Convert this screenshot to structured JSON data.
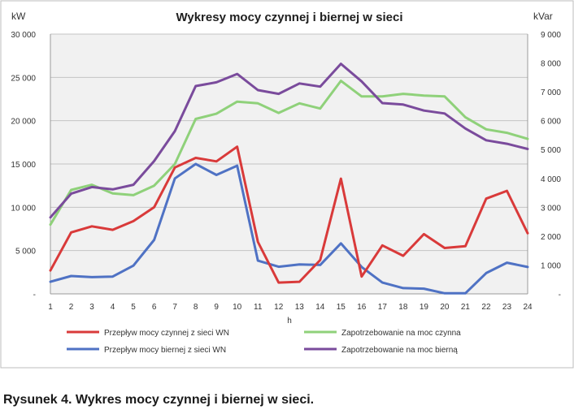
{
  "chart_data": {
    "type": "line",
    "title": "Wykresy mocy czynnej i biernej w sieci",
    "xlabel": "h",
    "ylabel_left": "kW",
    "ylabel_right": "kVar",
    "x": [
      1,
      2,
      3,
      4,
      5,
      6,
      7,
      8,
      9,
      10,
      11,
      12,
      13,
      14,
      15,
      16,
      17,
      18,
      19,
      20,
      21,
      22,
      23,
      24
    ],
    "ylim_left": [
      0,
      30000
    ],
    "ylim_right": [
      0,
      9000
    ],
    "yticks_left": [
      "30 000",
      "25 000",
      "20 000",
      "15 000",
      "10 000",
      "5 000",
      "-"
    ],
    "yticks_right": [
      "9 000",
      "8 000",
      "7 000",
      "6 000",
      "5 000",
      "4 000",
      "3 000",
      "2 000",
      "1 000",
      "-"
    ],
    "grid": true,
    "legend_position": "bottom",
    "series": [
      {
        "name": "Przepływ mocy czynnej z sieci WN",
        "axis": "left",
        "color": "#d93a3a",
        "values": [
          2700,
          7100,
          7800,
          7400,
          8400,
          10000,
          14600,
          15700,
          15300,
          17000,
          6000,
          1300,
          1400,
          3900,
          13300,
          2000,
          5600,
          4400,
          6900,
          5300,
          5500,
          11000,
          11900,
          7000
        ]
      },
      {
        "name": "Przepływ mocy biernej z sieci WN",
        "axis": "right",
        "color": "#4f72c4",
        "values": [
          420,
          620,
          580,
          600,
          980,
          1870,
          4000,
          4500,
          4120,
          4440,
          1150,
          940,
          1020,
          1000,
          1750,
          930,
          390,
          200,
          180,
          20,
          20,
          720,
          1080,
          930
        ]
      },
      {
        "name": "Zapotrzebowanie na moc czynna",
        "axis": "left",
        "color": "#8fd17a",
        "values": [
          8000,
          12000,
          12600,
          11600,
          11400,
          12500,
          15000,
          20200,
          20800,
          22200,
          22000,
          20900,
          22000,
          21400,
          24600,
          22800,
          22800,
          23100,
          22900,
          22800,
          20400,
          19000,
          18600,
          17900
        ]
      },
      {
        "name": "Zapotrzebowanie na moc bierną",
        "axis": "right",
        "color": "#7a4b9c",
        "values": [
          2650,
          3470,
          3700,
          3620,
          3780,
          4600,
          5640,
          7200,
          7330,
          7620,
          7060,
          6930,
          7290,
          7180,
          7970,
          7360,
          6610,
          6560,
          6350,
          6250,
          5730,
          5320,
          5200,
          5020
        ]
      }
    ]
  },
  "caption": "Rysunek 4. Wykres mocy czynnej i biernej w sieci."
}
